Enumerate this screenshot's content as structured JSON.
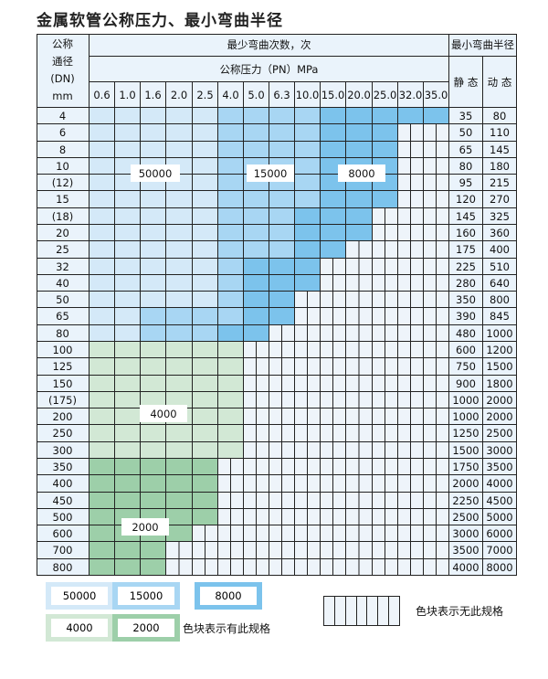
{
  "title": "金属软管公称压力、最小弯曲半径",
  "header": {
    "dn_label": [
      "公称",
      "通径",
      "(DN)",
      "mm"
    ],
    "cycles_label": "最少弯曲次数，次",
    "pressure_label": "公称压力（PN）MPa",
    "radius_label": "最小弯曲半径",
    "static_label": "静 态",
    "dynamic_label": "动 态",
    "pressures": [
      "0.6",
      "1.0",
      "1.6",
      "2.0",
      "2.5",
      "4.0",
      "5.0",
      "6.3",
      "10.0",
      "15.0",
      "20.0",
      "25.0",
      "32.0",
      "35.0"
    ]
  },
  "colors": {
    "50000": "#d4e9f8",
    "15000": "#a8d6f3",
    "8000": "#7cc3ec",
    "4000": "#d2e8d5",
    "2000": "#9dcfa9",
    "unavailable": "#eef4fa"
  },
  "block_labels": [
    "50000",
    "15000",
    "8000",
    "4000",
    "2000"
  ],
  "rows": [
    {
      "dn": "4",
      "static": "35",
      "dynamic": "80",
      "fills": [
        "50000",
        "50000",
        "50000",
        "50000",
        "50000",
        "15000",
        "15000",
        "15000",
        "15000",
        "8000",
        "8000",
        "8000",
        "8000",
        "8000"
      ]
    },
    {
      "dn": "6",
      "static": "50",
      "dynamic": "110",
      "fills": [
        "50000",
        "50000",
        "50000",
        "50000",
        "50000",
        "15000",
        "15000",
        "15000",
        "15000",
        "8000",
        "8000",
        "8000",
        null,
        null
      ]
    },
    {
      "dn": "8",
      "static": "65",
      "dynamic": "145",
      "fills": [
        "50000",
        "50000",
        "50000",
        "50000",
        "50000",
        "15000",
        "15000",
        "15000",
        "15000",
        "8000",
        "8000",
        "8000",
        null,
        null
      ]
    },
    {
      "dn": "10",
      "static": "80",
      "dynamic": "180",
      "fills": [
        "50000",
        "50000",
        "50000",
        "50000",
        "50000",
        "15000",
        "15000",
        "15000",
        "15000",
        "8000",
        "8000",
        "8000",
        null,
        null
      ]
    },
    {
      "dn": "(12)",
      "static": "95",
      "dynamic": "215",
      "fills": [
        "50000",
        "50000",
        "50000",
        "50000",
        "50000",
        "15000",
        "15000",
        "15000",
        "15000",
        "8000",
        "8000",
        "8000",
        null,
        null
      ]
    },
    {
      "dn": "15",
      "static": "120",
      "dynamic": "270",
      "fills": [
        "50000",
        "50000",
        "50000",
        "50000",
        "50000",
        "15000",
        "15000",
        "15000",
        "15000",
        "8000",
        "8000",
        "8000",
        null,
        null
      ]
    },
    {
      "dn": "(18)",
      "static": "145",
      "dynamic": "325",
      "fills": [
        "50000",
        "50000",
        "50000",
        "50000",
        "50000",
        "15000",
        "15000",
        "15000",
        "8000",
        "8000",
        "8000",
        null,
        null,
        null
      ]
    },
    {
      "dn": "20",
      "static": "160",
      "dynamic": "360",
      "fills": [
        "50000",
        "50000",
        "50000",
        "50000",
        "50000",
        "15000",
        "15000",
        "15000",
        "8000",
        "8000",
        "8000",
        null,
        null,
        null
      ]
    },
    {
      "dn": "25",
      "static": "175",
      "dynamic": "400",
      "fills": [
        "50000",
        "50000",
        "50000",
        "50000",
        "50000",
        "15000",
        "15000",
        "15000",
        "8000",
        "8000",
        null,
        null,
        null,
        null
      ]
    },
    {
      "dn": "32",
      "static": "225",
      "dynamic": "510",
      "fills": [
        "50000",
        "50000",
        "50000",
        "50000",
        "50000",
        "15000",
        "8000",
        "8000",
        "8000",
        null,
        null,
        null,
        null,
        null
      ]
    },
    {
      "dn": "40",
      "static": "280",
      "dynamic": "640",
      "fills": [
        "50000",
        "50000",
        "50000",
        "50000",
        "50000",
        "15000",
        "8000",
        "8000",
        "8000",
        null,
        null,
        null,
        null,
        null
      ]
    },
    {
      "dn": "50",
      "static": "350",
      "dynamic": "800",
      "fills": [
        "50000",
        "50000",
        "50000",
        "50000",
        "50000",
        "15000",
        "8000",
        "8000",
        null,
        null,
        null,
        null,
        null,
        null
      ]
    },
    {
      "dn": "65",
      "static": "390",
      "dynamic": "845",
      "fills": [
        "50000",
        "50000",
        "15000",
        "15000",
        "15000",
        "15000",
        "8000",
        "8000",
        null,
        null,
        null,
        null,
        null,
        null
      ]
    },
    {
      "dn": "80",
      "static": "480",
      "dynamic": "1000",
      "fills": [
        "50000",
        "50000",
        "15000",
        "15000",
        "15000",
        "8000",
        "8000",
        null,
        null,
        null,
        null,
        null,
        null,
        null
      ]
    },
    {
      "dn": "100",
      "static": "600",
      "dynamic": "1200",
      "fills": [
        "4000",
        "4000",
        "4000",
        "4000",
        "4000",
        "4000",
        null,
        null,
        null,
        null,
        null,
        null,
        null,
        null
      ]
    },
    {
      "dn": "125",
      "static": "750",
      "dynamic": "1500",
      "fills": [
        "4000",
        "4000",
        "4000",
        "4000",
        "4000",
        "4000",
        null,
        null,
        null,
        null,
        null,
        null,
        null,
        null
      ]
    },
    {
      "dn": "150",
      "static": "900",
      "dynamic": "1800",
      "fills": [
        "4000",
        "4000",
        "4000",
        "4000",
        "4000",
        "4000",
        null,
        null,
        null,
        null,
        null,
        null,
        null,
        null
      ]
    },
    {
      "dn": "(175)",
      "static": "1000",
      "dynamic": "2000",
      "fills": [
        "4000",
        "4000",
        "4000",
        "4000",
        "4000",
        "4000",
        null,
        null,
        null,
        null,
        null,
        null,
        null,
        null
      ]
    },
    {
      "dn": "200",
      "static": "1000",
      "dynamic": "2000",
      "fills": [
        "4000",
        "4000",
        "4000",
        "4000",
        "4000",
        "4000",
        null,
        null,
        null,
        null,
        null,
        null,
        null,
        null
      ]
    },
    {
      "dn": "250",
      "static": "1250",
      "dynamic": "2500",
      "fills": [
        "4000",
        "4000",
        "4000",
        "4000",
        "4000",
        "4000",
        null,
        null,
        null,
        null,
        null,
        null,
        null,
        null
      ]
    },
    {
      "dn": "300",
      "static": "1500",
      "dynamic": "3000",
      "fills": [
        "4000",
        "4000",
        "4000",
        "4000",
        "4000",
        "4000",
        null,
        null,
        null,
        null,
        null,
        null,
        null,
        null
      ]
    },
    {
      "dn": "350",
      "static": "1750",
      "dynamic": "3500",
      "fills": [
        "2000",
        "2000",
        "2000",
        "2000",
        "2000",
        null,
        null,
        null,
        null,
        null,
        null,
        null,
        null,
        null
      ]
    },
    {
      "dn": "400",
      "static": "2000",
      "dynamic": "4000",
      "fills": [
        "2000",
        "2000",
        "2000",
        "2000",
        "2000",
        null,
        null,
        null,
        null,
        null,
        null,
        null,
        null,
        null
      ]
    },
    {
      "dn": "450",
      "static": "2250",
      "dynamic": "4500",
      "fills": [
        "2000",
        "2000",
        "2000",
        "2000",
        "2000",
        null,
        null,
        null,
        null,
        null,
        null,
        null,
        null,
        null
      ]
    },
    {
      "dn": "500",
      "static": "2500",
      "dynamic": "5000",
      "fills": [
        "2000",
        "2000",
        "2000",
        "2000",
        "2000",
        null,
        null,
        null,
        null,
        null,
        null,
        null,
        null,
        null
      ]
    },
    {
      "dn": "600",
      "static": "3000",
      "dynamic": "6000",
      "fills": [
        "2000",
        "2000",
        "2000",
        "2000",
        null,
        null,
        null,
        null,
        null,
        null,
        null,
        null,
        null,
        null
      ]
    },
    {
      "dn": "700",
      "static": "3500",
      "dynamic": "7000",
      "fills": [
        "2000",
        "2000",
        "2000",
        null,
        null,
        null,
        null,
        null,
        null,
        null,
        null,
        null,
        null,
        null
      ]
    },
    {
      "dn": "800",
      "static": "4000",
      "dynamic": "8000",
      "fills": [
        "2000",
        "2000",
        "2000",
        null,
        null,
        null,
        null,
        null,
        null,
        null,
        null,
        null,
        null,
        null
      ]
    }
  ],
  "legend": {
    "available_text": "色块表示有此规格",
    "unavailable_text": "色块表示无此规格",
    "items": [
      "50000",
      "15000",
      "8000",
      "4000",
      "2000"
    ]
  }
}
